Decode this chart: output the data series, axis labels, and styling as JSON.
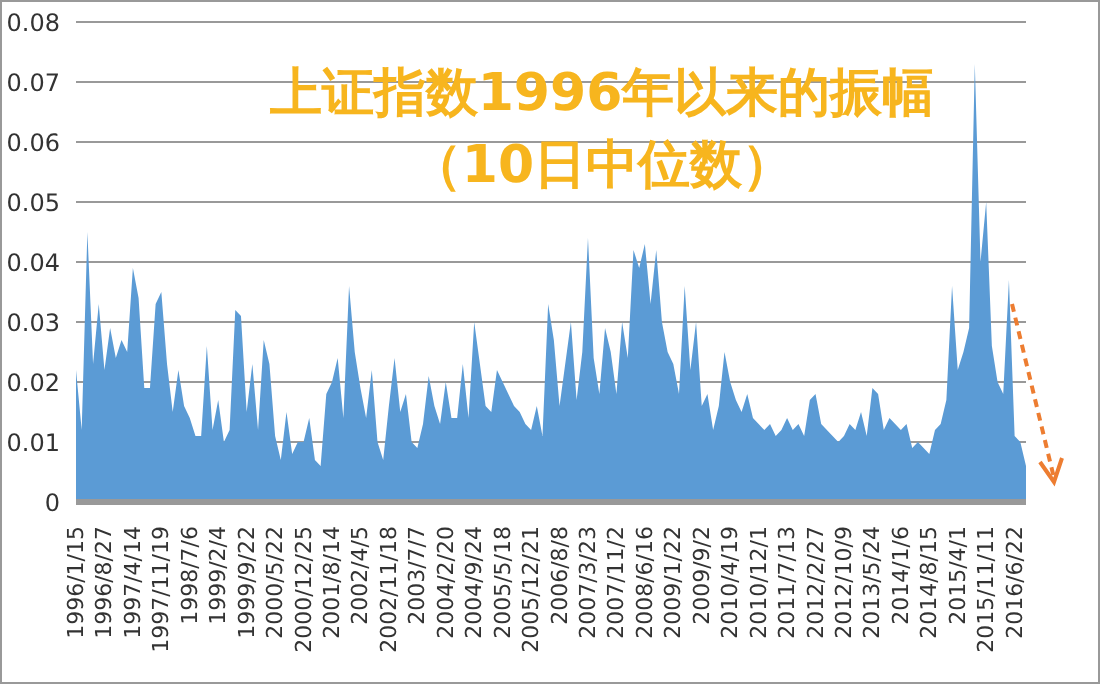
{
  "chart_data": {
    "type": "area",
    "title": "上证指数1996年以来的振幅",
    "subtitle": "（10日中位数）",
    "categories": [
      "1996/1/15",
      null,
      null,
      null,
      null,
      "1996/8/27",
      null,
      null,
      null,
      null,
      "1997/4/14",
      null,
      null,
      null,
      null,
      "1997/11/19",
      null,
      null,
      null,
      null,
      "1998/7/6",
      null,
      null,
      null,
      null,
      "1999/2/4",
      null,
      null,
      null,
      null,
      "1999/9/22",
      null,
      null,
      null,
      null,
      "2000/5/22",
      null,
      null,
      null,
      null,
      "2000/12/25",
      null,
      null,
      null,
      null,
      "2001/8/14",
      null,
      null,
      null,
      null,
      "2002/4/5",
      null,
      null,
      null,
      null,
      "2002/11/18",
      null,
      null,
      null,
      null,
      "2003/7/7",
      null,
      null,
      null,
      null,
      "2004/2/20",
      null,
      null,
      null,
      null,
      "2004/9/24",
      null,
      null,
      null,
      null,
      "2005/5/18",
      null,
      null,
      null,
      null,
      "2005/12/21",
      null,
      null,
      null,
      null,
      "2006/8/8",
      null,
      null,
      null,
      null,
      "2007/3/23",
      null,
      null,
      null,
      null,
      "2007/11/2",
      null,
      null,
      null,
      null,
      "2008/6/16",
      null,
      null,
      null,
      null,
      "2009/1/22",
      null,
      null,
      null,
      null,
      "2009/9/2",
      null,
      null,
      null,
      null,
      "2010/4/19",
      null,
      null,
      null,
      null,
      "2010/12/1",
      null,
      null,
      null,
      null,
      "2011/7/13",
      null,
      null,
      null,
      null,
      "2012/2/27",
      null,
      null,
      null,
      null,
      "2012/10/9",
      null,
      null,
      null,
      null,
      "2013/5/24",
      null,
      null,
      null,
      null,
      "2014/1/6",
      null,
      null,
      null,
      null,
      "2014/8/15",
      null,
      null,
      null,
      null,
      "2015/4/1",
      null,
      null,
      null,
      null,
      "2015/11/11",
      null,
      null,
      null,
      null,
      "2016/6/22",
      null,
      null
    ],
    "color": "#5b9bd5",
    "values": [
      0.022,
      0.012,
      0.045,
      0.023,
      0.033,
      0.022,
      0.029,
      0.024,
      0.027,
      0.025,
      0.039,
      0.034,
      0.019,
      0.019,
      0.033,
      0.035,
      0.023,
      0.015,
      0.022,
      0.016,
      0.014,
      0.011,
      0.011,
      0.026,
      0.012,
      0.017,
      0.01,
      0.012,
      0.032,
      0.031,
      0.015,
      0.023,
      0.012,
      0.027,
      0.023,
      0.011,
      0.007,
      0.015,
      0.008,
      0.01,
      0.01,
      0.014,
      0.007,
      0.006,
      0.018,
      0.02,
      0.024,
      0.014,
      0.036,
      0.025,
      0.019,
      0.014,
      0.022,
      0.01,
      0.007,
      0.016,
      0.024,
      0.015,
      0.018,
      0.01,
      0.009,
      0.013,
      0.021,
      0.016,
      0.013,
      0.02,
      0.014,
      0.014,
      0.023,
      0.014,
      0.03,
      0.023,
      0.016,
      0.015,
      0.022,
      0.02,
      0.018,
      0.016,
      0.015,
      0.013,
      0.012,
      0.016,
      0.011,
      0.033,
      0.027,
      0.016,
      0.023,
      0.03,
      0.017,
      0.025,
      0.044,
      0.024,
      0.018,
      0.029,
      0.025,
      0.018,
      0.03,
      0.024,
      0.042,
      0.039,
      0.043,
      0.033,
      0.042,
      0.03,
      0.025,
      0.023,
      0.018,
      0.036,
      0.022,
      0.03,
      0.016,
      0.018,
      0.012,
      0.016,
      0.025,
      0.02,
      0.017,
      0.015,
      0.018,
      0.014,
      0.013,
      0.012,
      0.013,
      0.011,
      0.012,
      0.014,
      0.012,
      0.013,
      0.011,
      0.017,
      0.018,
      0.013,
      0.012,
      0.011,
      0.01,
      0.011,
      0.013,
      0.012,
      0.015,
      0.011,
      0.019,
      0.018,
      0.012,
      0.014,
      0.013,
      0.012,
      0.013,
      0.009,
      0.01,
      0.009,
      0.008,
      0.012,
      0.013,
      0.017,
      0.036,
      0.022,
      0.025,
      0.029,
      0.073,
      0.04,
      0.05,
      0.026,
      0.02,
      0.018,
      0.037,
      0.011,
      0.01,
      0.006
    ],
    "ylim": [
      0,
      0.08
    ],
    "yticks": [
      0,
      0.01,
      0.02,
      0.03,
      0.04,
      0.05,
      0.06,
      0.07,
      0.08
    ],
    "grid": "y"
  }
}
